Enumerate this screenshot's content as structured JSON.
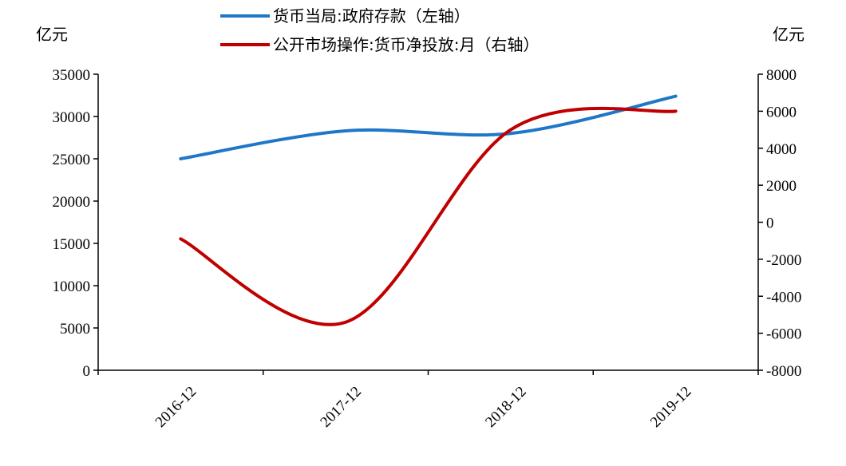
{
  "chart_data": {
    "type": "line",
    "title": "",
    "x": [
      "2016-12",
      "2017-12",
      "2018-12",
      "2019-12"
    ],
    "left_axis": {
      "unit": "亿元",
      "ylim": [
        0,
        35000
      ],
      "ticks": [
        "0",
        "5000",
        "10000",
        "15000",
        "20000",
        "25000",
        "30000",
        "35000"
      ]
    },
    "right_axis": {
      "unit": "亿元",
      "ylim": [
        -8000,
        8000
      ],
      "ticks": [
        "-8000",
        "-6000",
        "-4000",
        "-2000",
        "0",
        "2000",
        "4000",
        "6000",
        "8000"
      ]
    },
    "series": [
      {
        "name": "货币当局:政府存款（左轴）",
        "axis": "left",
        "color": "#1f77c8",
        "values": [
          25000,
          28300,
          28000,
          32400
        ]
      },
      {
        "name": "公开市场操作:货币净投放:月（右轴）",
        "axis": "right",
        "color": "#c00000",
        "values": [
          -900,
          -5400,
          5000,
          6000
        ]
      }
    ],
    "legend_position": "top-center",
    "grid": false
  }
}
